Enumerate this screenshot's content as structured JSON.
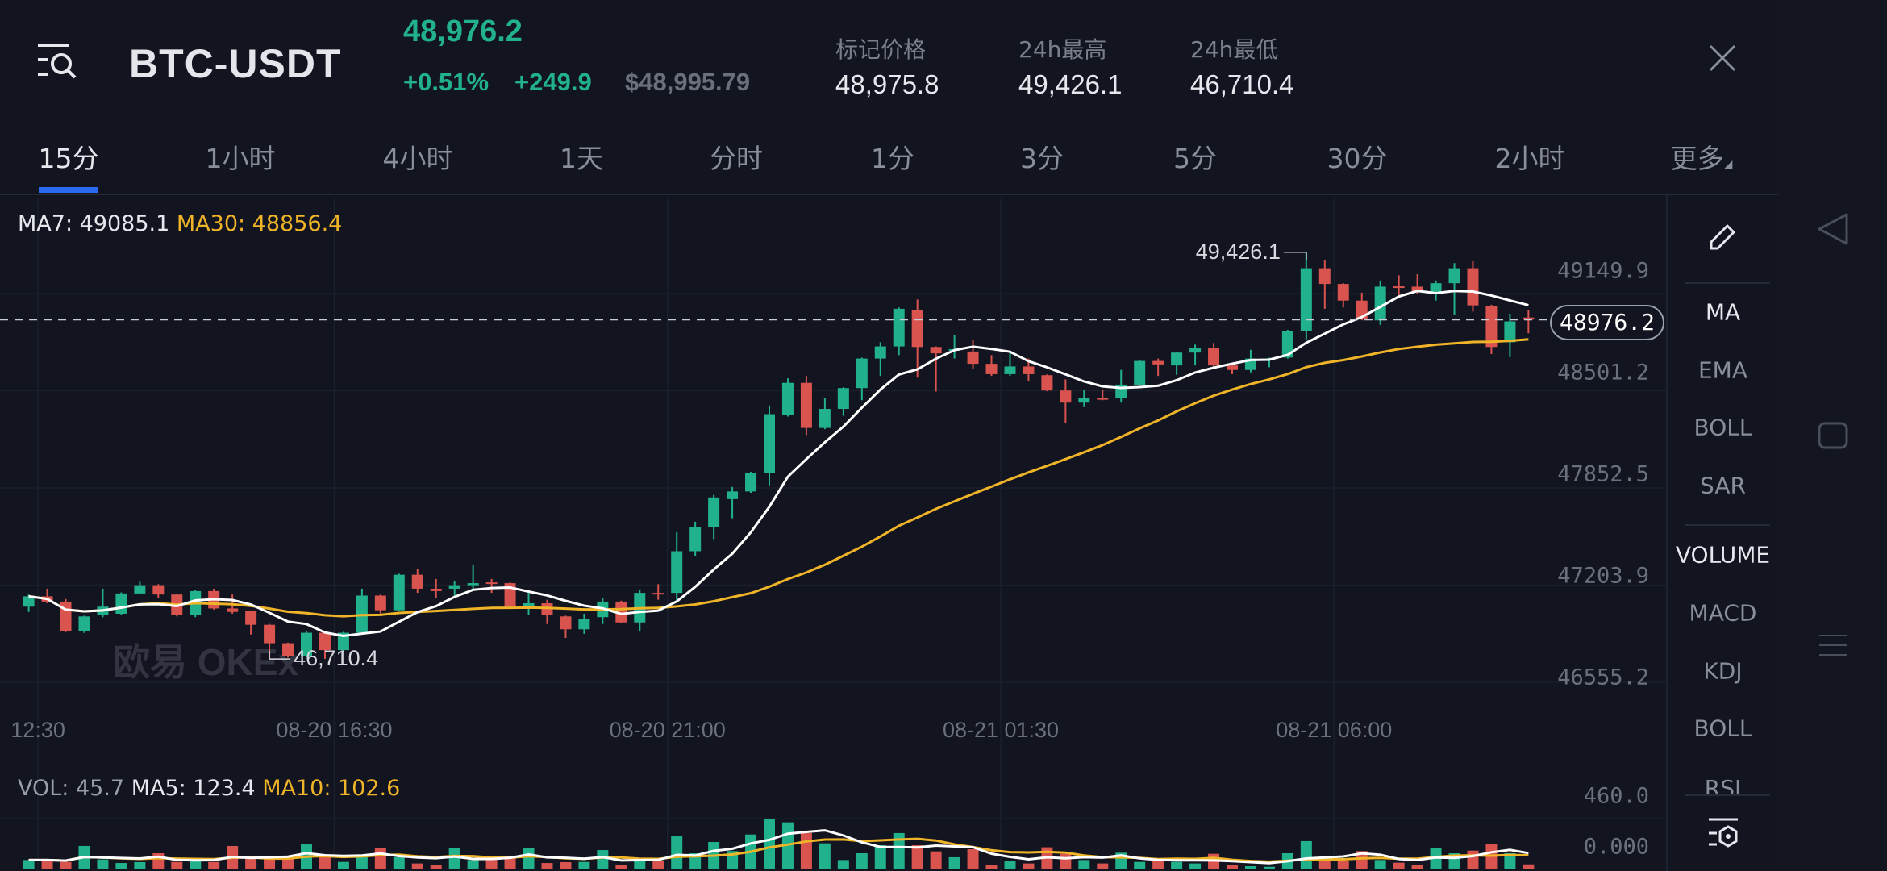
{
  "header": {
    "pair": "BTC-USDT",
    "last_price": "48,976.2",
    "change_pct": "+0.51%",
    "change_abs": "+249.9",
    "usd_price": "$48,995.79",
    "stats": [
      {
        "label": "标记价格",
        "value": "48,975.8"
      },
      {
        "label": "24h最高",
        "value": "49,426.1"
      },
      {
        "label": "24h最低",
        "value": "46,710.4"
      }
    ]
  },
  "tabs": [
    "15分",
    "1小时",
    "4小时",
    "1天",
    "分时",
    "1分",
    "3分",
    "5分",
    "30分",
    "2小时",
    "更多"
  ],
  "active_tab": "15分",
  "toolbar": {
    "main_indicators": [
      "MA",
      "EMA",
      "BOLL",
      "SAR"
    ],
    "sub_indicators": [
      "VOLUME",
      "MACD",
      "KDJ",
      "BOLL",
      "RSI"
    ]
  },
  "watermark": "欧易 OKEx",
  "colors": {
    "up": "#22b28b",
    "down": "#d9534f",
    "ma7": "#ffffff",
    "ma30": "#f0b429",
    "accent": "#2a6af0"
  },
  "chart_data": {
    "type": "candlestick",
    "legend": {
      "ma7_label": "MA7: 49085.1",
      "ma30_label": "MA30: 48856.4"
    },
    "y_ticks": [
      "49149.9",
      "48501.2",
      "47852.5",
      "47203.9",
      "46555.2"
    ],
    "y_tick_values": [
      49149.9,
      48501.2,
      47852.5,
      47203.9,
      46555.2
    ],
    "current_price": 48976.2,
    "current_price_label": "48976.2",
    "high_marker": {
      "label": "49,426.1",
      "index": 69
    },
    "low_marker": {
      "label": "46,710.4",
      "index": 13
    },
    "x_ticks": [
      {
        "label": "12:30",
        "index": 0.5
      },
      {
        "label": "08-20 16:30",
        "index": 16.5
      },
      {
        "label": "08-20 21:00",
        "index": 34.5
      },
      {
        "label": "08-21 01:30",
        "index": 52.5
      },
      {
        "label": "08-21 06:00",
        "index": 70.5
      }
    ],
    "ohlc": [
      [
        47060,
        47141,
        47025,
        47129
      ],
      [
        47129,
        47180,
        47083,
        47094
      ],
      [
        47094,
        47111,
        46890,
        46897
      ],
      [
        46897,
        47000,
        46885,
        46995
      ],
      [
        47002,
        47180,
        46990,
        47060
      ],
      [
        47013,
        47155,
        47005,
        47148
      ],
      [
        47148,
        47226,
        47145,
        47203
      ],
      [
        47203,
        47210,
        47117,
        47141
      ],
      [
        47141,
        47145,
        46995,
        47002
      ],
      [
        47002,
        47170,
        46990,
        47164
      ],
      [
        47164,
        47180,
        47040,
        47048
      ],
      [
        47048,
        47141,
        47013,
        47025
      ],
      [
        47032,
        47035,
        46874,
        46939
      ],
      [
        46939,
        46945,
        46710.4,
        46816
      ],
      [
        46816,
        46820,
        46720,
        46730
      ],
      [
        46730,
        46895,
        46722,
        46886
      ],
      [
        46886,
        46890,
        46712,
        46770
      ],
      [
        46770,
        46892,
        46760,
        46886
      ],
      [
        46886,
        47180,
        46880,
        47134
      ],
      [
        47134,
        47140,
        47013,
        47036
      ],
      [
        47036,
        47280,
        47030,
        47273
      ],
      [
        47273,
        47314,
        47152,
        47180
      ],
      [
        47180,
        47245,
        47117,
        47164
      ],
      [
        47180,
        47233,
        47129,
        47203
      ],
      [
        47203,
        47338,
        47175,
        47217
      ],
      [
        47222,
        47245,
        47152,
        47217
      ],
      [
        47217,
        47222,
        47055,
        47060
      ],
      [
        47060,
        47164,
        47002,
        47083
      ],
      [
        47083,
        47106,
        46944,
        47002
      ],
      [
        46995,
        47000,
        46851,
        46909
      ],
      [
        46909,
        47013,
        46879,
        46978
      ],
      [
        46990,
        47117,
        46944,
        47094
      ],
      [
        47094,
        47100,
        46950,
        46955
      ],
      [
        46955,
        47175,
        46897,
        47152
      ],
      [
        47152,
        47210,
        47106,
        47148
      ],
      [
        47152,
        47558,
        47106,
        47430
      ],
      [
        47430,
        47627,
        47396,
        47592
      ],
      [
        47592,
        47806,
        47511,
        47789
      ],
      [
        47778,
        47859,
        47650,
        47829
      ],
      [
        47829,
        47960,
        47820,
        47952
      ],
      [
        47952,
        48403,
        47870,
        48345
      ],
      [
        48338,
        48584,
        48329,
        48554
      ],
      [
        48554,
        48600,
        48206,
        48253
      ],
      [
        48253,
        48450,
        48245,
        48380
      ],
      [
        48380,
        48525,
        48334,
        48519
      ],
      [
        48519,
        48722,
        48438,
        48716
      ],
      [
        48716,
        48825,
        48600,
        48797
      ],
      [
        48797,
        49057,
        48739,
        49048
      ],
      [
        49041,
        49110,
        48589,
        48793
      ],
      [
        48793,
        48797,
        48496,
        48751
      ],
      [
        48769,
        48871,
        48716,
        48779
      ],
      [
        48763,
        48844,
        48647,
        48681
      ],
      [
        48681,
        48739,
        48600,
        48612
      ],
      [
        48612,
        48756,
        48600,
        48663
      ],
      [
        48663,
        48716,
        48566,
        48612
      ],
      [
        48605,
        48610,
        48498,
        48503
      ],
      [
        48503,
        48577,
        48288,
        48422
      ],
      [
        48422,
        48508,
        48392,
        48450
      ],
      [
        48452,
        48508,
        48438,
        48450
      ],
      [
        48450,
        48640,
        48422,
        48542
      ],
      [
        48542,
        48705,
        48535,
        48700
      ],
      [
        48700,
        48716,
        48600,
        48677
      ],
      [
        48670,
        48760,
        48607,
        48756
      ],
      [
        48756,
        48809,
        48670,
        48786
      ],
      [
        48786,
        48820,
        48658,
        48670
      ],
      [
        48670,
        48675,
        48612,
        48640
      ],
      [
        48640,
        48774,
        48624,
        48716
      ],
      [
        48714,
        48722,
        48658,
        48716
      ],
      [
        48723,
        48908,
        48716,
        48902
      ],
      [
        48902,
        49426.1,
        48844,
        49319
      ],
      [
        49319,
        49376,
        49048,
        49214
      ],
      [
        49214,
        49220,
        49057,
        49103
      ],
      [
        49103,
        49156,
        48971,
        48978
      ],
      [
        48971,
        49237,
        48941,
        49196
      ],
      [
        49198,
        49272,
        49140,
        49196
      ],
      [
        49196,
        49279,
        49150,
        49163
      ],
      [
        49163,
        49237,
        49103,
        49219
      ],
      [
        49219,
        49353,
        49006,
        49319
      ],
      [
        49319,
        49365,
        49029,
        49071
      ],
      [
        49068,
        49075,
        48746,
        48793
      ],
      [
        48825,
        49015,
        48726,
        48964
      ],
      [
        48990,
        49040,
        48885,
        48976.2
      ]
    ],
    "volume": {
      "legend": {
        "vol_label": "VOL: 45.7",
        "ma5_label": "MA5: 123.4",
        "ma10_label": "MA10: 102.6"
      },
      "y_ticks": [
        "460.0",
        "0.000"
      ],
      "ylim": [
        0,
        460
      ],
      "values": [
        85,
        85,
        68,
        212,
        90,
        58,
        66,
        146,
        68,
        73,
        68,
        212,
        97,
        97,
        102,
        226,
        117,
        68,
        117,
        190,
        110,
        54,
        37,
        190,
        85,
        110,
        102,
        190,
        58,
        66,
        68,
        175,
        37,
        73,
        73,
        299,
        146,
        248,
        166,
        316,
        460,
        426,
        329,
        236,
        85,
        146,
        219,
        329,
        219,
        163,
        110,
        183,
        37,
        73,
        54,
        200,
        141,
        85,
        54,
        151,
        68,
        73,
        68,
        54,
        141,
        37,
        29,
        24,
        146,
        256,
        85,
        73,
        166,
        85,
        61,
        37,
        190,
        146,
        170,
        231,
        146,
        45.7
      ]
    }
  }
}
